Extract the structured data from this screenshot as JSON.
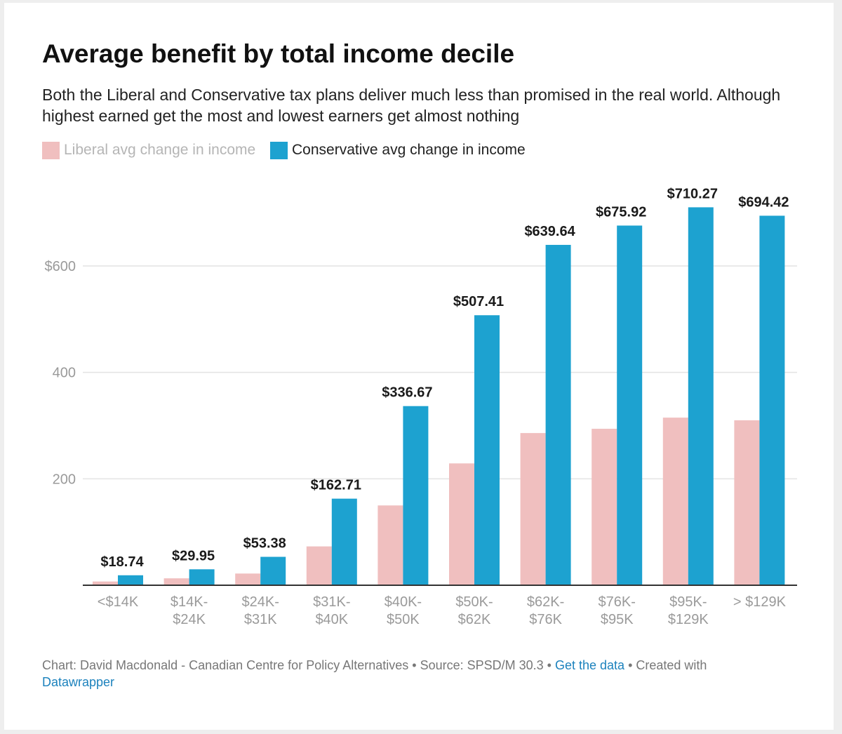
{
  "colors": {
    "liberal": "#f0bfbf",
    "conservative": "#1da2d0",
    "label": "#1a1a1a",
    "grid": "#e3e3e3",
    "axis_text": "#9a9a9a",
    "link": "#1c82bd"
  },
  "header": {
    "title": "Average benefit by total income decile",
    "subtitle": "Both the Liberal and Conservative tax plans deliver much less than promised in the real world. Although highest earned get the most and lowest earners get almost nothing"
  },
  "legend": {
    "liberal_label": "Liberal avg change in income",
    "conservative_label": "Conservative avg change in income"
  },
  "footer": {
    "credit": "Chart: David Macdonald - Canadian Centre for Policy Alternatives",
    "separator": " • ",
    "source": "Source: SPSD/M 30.3",
    "get_data": "Get the data",
    "created_with": "Created with",
    "datawrapper": "Datawrapper"
  },
  "chart_data": {
    "type": "bar",
    "title": "Average benefit by total income decile",
    "xlabel": "",
    "ylabel": "",
    "ylim": [
      0,
      700
    ],
    "yticks": [
      {
        "value": 200,
        "label": "200"
      },
      {
        "value": 400,
        "label": "400"
      },
      {
        "value": 600,
        "label": "$600"
      }
    ],
    "categories": [
      [
        "<$14K"
      ],
      [
        "$14K-",
        "$24K"
      ],
      [
        "$24K-",
        "$31K"
      ],
      [
        "$31K-",
        "$40K"
      ],
      [
        "$40K-",
        "$50K"
      ],
      [
        "$50K-",
        "$62K"
      ],
      [
        "$62K-",
        "$76K"
      ],
      [
        "$76K-",
        "$95K"
      ],
      [
        "$95K-",
        "$129K"
      ],
      [
        "> $129K"
      ]
    ],
    "series": [
      {
        "name": "Liberal avg change in income",
        "values": [
          7,
          13,
          22,
          73,
          150,
          229,
          286,
          294,
          315,
          310
        ]
      },
      {
        "name": "Conservative avg change in income",
        "values": [
          18.74,
          29.95,
          53.38,
          162.71,
          336.67,
          507.41,
          639.64,
          675.92,
          710.27,
          694.42
        ],
        "labels": [
          "$18.74",
          "$29.95",
          "$53.38",
          "$162.71",
          "$336.67",
          "$507.41",
          "$639.64",
          "$675.92",
          "$710.27",
          "$694.42"
        ]
      }
    ],
    "legend": "top-left"
  }
}
